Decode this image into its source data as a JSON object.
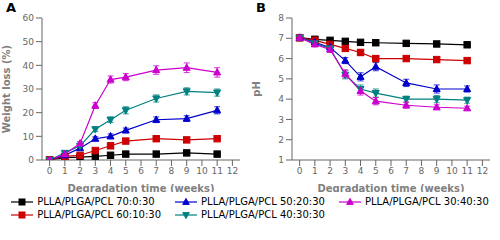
{
  "chart_data": [
    {
      "type": "line",
      "title": "A",
      "xlabel": "Degradation time (weeks)",
      "ylabel": "Weight loss (%)",
      "x": [
        0,
        1,
        2,
        3,
        4,
        5,
        7,
        9,
        11
      ],
      "xlim": [
        -0.5,
        12.5
      ],
      "xticks": [
        0,
        1,
        2,
        3,
        4,
        5,
        6,
        7,
        8,
        9,
        10,
        11,
        12
      ],
      "ylim": [
        0,
        60
      ],
      "yticks": [
        0,
        10,
        20,
        30,
        40,
        50,
        60
      ],
      "legend": "bottom",
      "series": [
        {
          "name": "PLLA/PLGA/PCL 70:0:30",
          "color": "#000000",
          "marker": "square",
          "values": [
            0,
            1.0,
            1.2,
            1.5,
            2.0,
            2.5,
            2.5,
            3.0,
            2.5
          ],
          "errors": [
            0,
            0.3,
            0.3,
            0.4,
            0.5,
            0.5,
            0.5,
            0.6,
            0.5
          ]
        },
        {
          "name": "PLLA/PLGA/PCL 60:10:30",
          "color": "#cc0000",
          "marker": "square",
          "values": [
            0,
            1.5,
            2.0,
            4.0,
            6.0,
            8.0,
            9.0,
            8.5,
            9.0
          ],
          "errors": [
            0,
            0.4,
            0.5,
            0.5,
            0.7,
            0.8,
            0.9,
            0.8,
            0.8
          ]
        },
        {
          "name": "PLLA/PLGA/PCL 50:20:30",
          "color": "#0000cc",
          "marker": "triangle-up",
          "values": [
            0,
            2.0,
            5.0,
            9.0,
            10.0,
            12.5,
            17.0,
            17.5,
            21.0
          ],
          "errors": [
            0,
            0.5,
            0.6,
            0.8,
            1.0,
            1.0,
            1.2,
            1.2,
            1.5
          ]
        },
        {
          "name": "PLLA/PLGA/PCL 40:30:30",
          "color": "#008080",
          "marker": "triangle-down",
          "values": [
            0,
            3.0,
            6.0,
            13.0,
            17.0,
            21.0,
            26.0,
            29.0,
            28.5
          ],
          "errors": [
            0,
            0.5,
            0.7,
            1.0,
            1.2,
            1.5,
            1.5,
            1.5,
            1.5
          ]
        },
        {
          "name": "PLLA/PLGA/PCL 30:40:30",
          "color": "#cc00cc",
          "marker": "triangle-up",
          "values": [
            0,
            2.5,
            7.0,
            23.0,
            34.0,
            35.0,
            38.0,
            39.0,
            37.0
          ],
          "errors": [
            0,
            0.5,
            0.8,
            1.2,
            1.5,
            1.5,
            1.8,
            2.0,
            2.0
          ]
        }
      ]
    },
    {
      "type": "line",
      "title": "B",
      "xlabel": "Degradation time (weeks)",
      "ylabel": "pH",
      "x": [
        0,
        1,
        2,
        3,
        4,
        5,
        7,
        9,
        11
      ],
      "xlim": [
        -0.5,
        12.5
      ],
      "xticks": [
        0,
        1,
        2,
        3,
        4,
        5,
        6,
        7,
        8,
        9,
        10,
        11,
        12
      ],
      "ylim": [
        1,
        8
      ],
      "yticks": [
        1,
        2,
        3,
        4,
        5,
        6,
        7,
        8
      ],
      "legend": "bottom",
      "series": [
        {
          "name": "PLLA/PLGA/PCL 70:0:30",
          "color": "#000000",
          "marker": "square",
          "values": [
            7.03,
            6.95,
            6.9,
            6.85,
            6.8,
            6.78,
            6.75,
            6.72,
            6.68
          ],
          "errors": [
            0,
            0.05,
            0.05,
            0.05,
            0.05,
            0.05,
            0.05,
            0.05,
            0.05
          ]
        },
        {
          "name": "PLLA/PLGA/PCL 60:10:30",
          "color": "#cc0000",
          "marker": "square",
          "values": [
            7.03,
            6.9,
            6.7,
            6.5,
            6.3,
            6.0,
            6.0,
            5.95,
            5.9
          ],
          "errors": [
            0,
            0.08,
            0.1,
            0.12,
            0.15,
            0.15,
            0.12,
            0.1,
            0.1
          ]
        },
        {
          "name": "PLLA/PLGA/PCL 50:20:30",
          "color": "#0000cc",
          "marker": "triangle-up",
          "values": [
            7.03,
            6.8,
            6.55,
            5.9,
            5.1,
            5.6,
            4.8,
            4.5,
            4.5
          ],
          "errors": [
            0,
            0.1,
            0.12,
            0.15,
            0.2,
            0.2,
            0.18,
            0.2,
            0.15
          ]
        },
        {
          "name": "PLLA/PLGA/PCL 40:30:30",
          "color": "#008080",
          "marker": "triangle-down",
          "values": [
            7.03,
            6.75,
            6.5,
            5.2,
            4.5,
            4.3,
            4.0,
            4.0,
            3.95
          ],
          "errors": [
            0,
            0.1,
            0.15,
            0.2,
            0.2,
            0.2,
            0.15,
            0.18,
            0.15
          ]
        },
        {
          "name": "PLLA/PLGA/PCL 30:40:30",
          "color": "#cc00cc",
          "marker": "triangle-up",
          "values": [
            7.03,
            6.7,
            6.45,
            5.25,
            4.4,
            3.9,
            3.7,
            3.6,
            3.55
          ],
          "errors": [
            0,
            0.1,
            0.15,
            0.2,
            0.2,
            0.18,
            0.15,
            0.12,
            0.1
          ]
        }
      ]
    }
  ]
}
